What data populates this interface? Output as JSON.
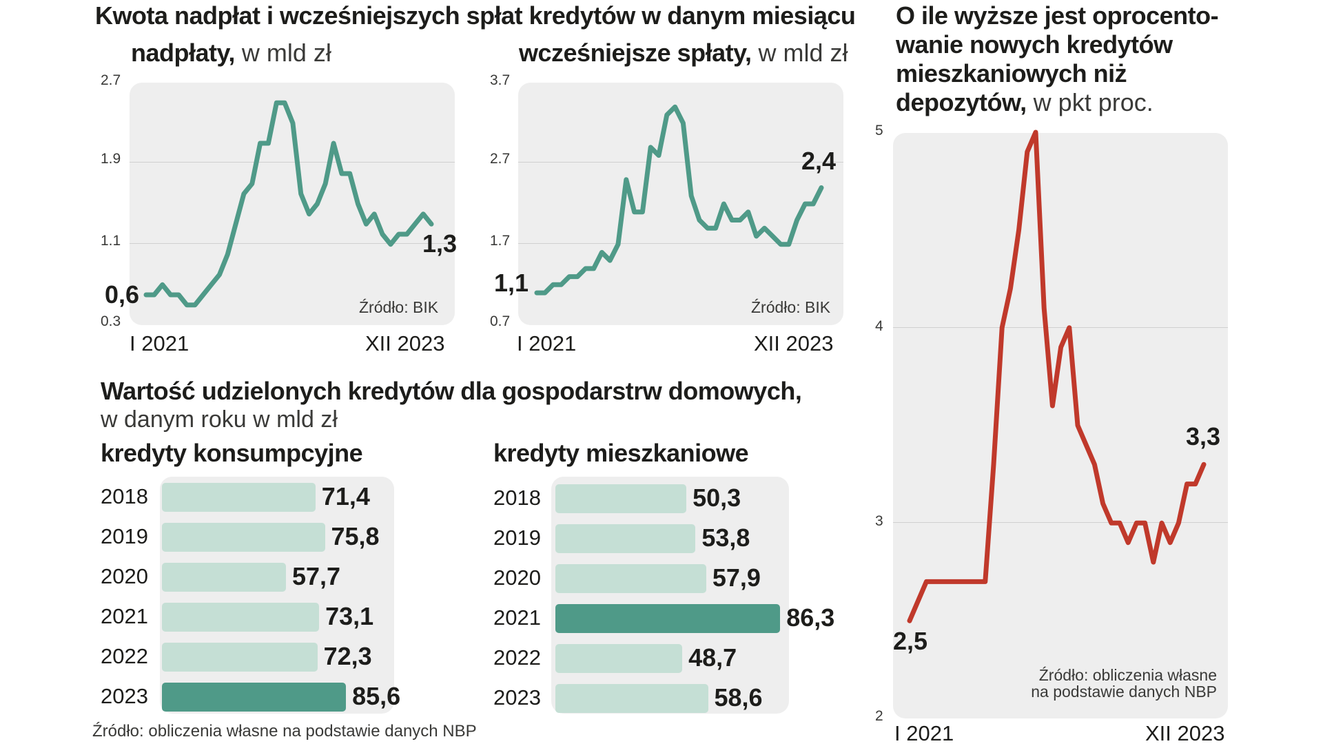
{
  "colors": {
    "green": "#4f9a88",
    "light_green": "#c5dfd5",
    "red": "#c0392b",
    "panel": "#eeeeee"
  },
  "header": {
    "title": "Kwota nadpłat i wcześniejszych spłat kredytów w danym miesiącu"
  },
  "bars_header": {
    "title": "Wartość udzielonych kredytów dla gospodarstrw domowych,",
    "subtitle": "w danym roku w mld zł"
  },
  "footer_source": "Źródło: obliczenia własne na podstawie danych NBP",
  "chart_data": [
    {
      "id": "overpayments",
      "type": "line",
      "title_bold": "nadpłaty,",
      "title_rest": " w mld zł",
      "ylim": [
        0.3,
        2.7
      ],
      "yticks": [
        "2.7",
        "1.9",
        "1.1",
        "0.3"
      ],
      "x_start": "I 2021",
      "x_end": "XII 2023",
      "start_label": "0,6",
      "end_label": "1,3",
      "source": "Źródło: BIK",
      "values": [
        0.6,
        0.6,
        0.7,
        0.6,
        0.6,
        0.5,
        0.5,
        0.6,
        0.7,
        0.8,
        1.0,
        1.3,
        1.6,
        1.7,
        2.1,
        2.1,
        2.5,
        2.5,
        2.3,
        1.6,
        1.4,
        1.5,
        1.7,
        2.1,
        1.8,
        1.8,
        1.5,
        1.3,
        1.4,
        1.2,
        1.1,
        1.2,
        1.2,
        1.3,
        1.4,
        1.3
      ]
    },
    {
      "id": "early-repayments",
      "type": "line",
      "title_bold": "wcześniejsze spłaty,",
      "title_rest": " w mld zł",
      "ylim": [
        0.7,
        3.7
      ],
      "yticks": [
        "3.7",
        "2.7",
        "1.7",
        "0.7"
      ],
      "x_start": "I 2021",
      "x_end": "XII 2023",
      "start_label": "1,1",
      "end_label": "2,4",
      "source": "Źródło: BIK",
      "values": [
        1.1,
        1.1,
        1.2,
        1.2,
        1.3,
        1.3,
        1.4,
        1.4,
        1.6,
        1.5,
        1.7,
        2.5,
        2.1,
        2.1,
        2.9,
        2.8,
        3.3,
        3.4,
        3.2,
        2.3,
        2.0,
        1.9,
        1.9,
        2.2,
        2.0,
        2.0,
        2.1,
        1.8,
        1.9,
        1.8,
        1.7,
        1.7,
        2.0,
        2.2,
        2.2,
        2.4
      ]
    },
    {
      "id": "spread",
      "type": "line",
      "title_lines": [
        "O ile wyższe jest oprocento-",
        "wanie nowych kredytów",
        "mieszkaniowych niż"
      ],
      "title_bold_last": "depozytów,",
      "title_rest": " w pkt proc.",
      "ylim": [
        2,
        5
      ],
      "yticks": [
        "5",
        "4",
        "3",
        "2"
      ],
      "x_start": "I 2021",
      "x_end": "XII 2023",
      "start_label": "2,5",
      "end_label": "3,3",
      "source_lines": [
        "Źródło: obliczenia własne",
        "na podstawie danych NBP"
      ],
      "values": [
        2.5,
        2.6,
        2.7,
        2.7,
        2.7,
        2.7,
        2.7,
        2.7,
        2.7,
        2.7,
        3.3,
        4.0,
        4.2,
        4.5,
        4.9,
        5.0,
        4.1,
        3.6,
        3.9,
        4.0,
        3.5,
        3.4,
        3.3,
        3.1,
        3.0,
        3.0,
        2.9,
        3.0,
        3.0,
        2.8,
        3.0,
        2.9,
        3.0,
        3.2,
        3.2,
        3.3
      ]
    },
    {
      "id": "consumer-loans",
      "type": "bar",
      "title": "kredyty konsumpcyjne",
      "categories": [
        "2018",
        "2019",
        "2020",
        "2021",
        "2022",
        "2023"
      ],
      "labels": [
        "71,4",
        "75,8",
        "57,7",
        "73,1",
        "72,3",
        "85,6"
      ],
      "values": [
        71.4,
        75.8,
        57.7,
        73.1,
        72.3,
        85.6
      ],
      "highlight": "2023"
    },
    {
      "id": "mortgage-loans",
      "type": "bar",
      "title": "kredyty mieszkaniowe",
      "categories": [
        "2018",
        "2019",
        "2020",
        "2021",
        "2022",
        "2023"
      ],
      "labels": [
        "50,3",
        "53,8",
        "57,9",
        "86,3",
        "48,7",
        "58,6"
      ],
      "values": [
        50.3,
        53.8,
        57.9,
        86.3,
        48.7,
        58.6
      ],
      "highlight": "2021"
    }
  ]
}
